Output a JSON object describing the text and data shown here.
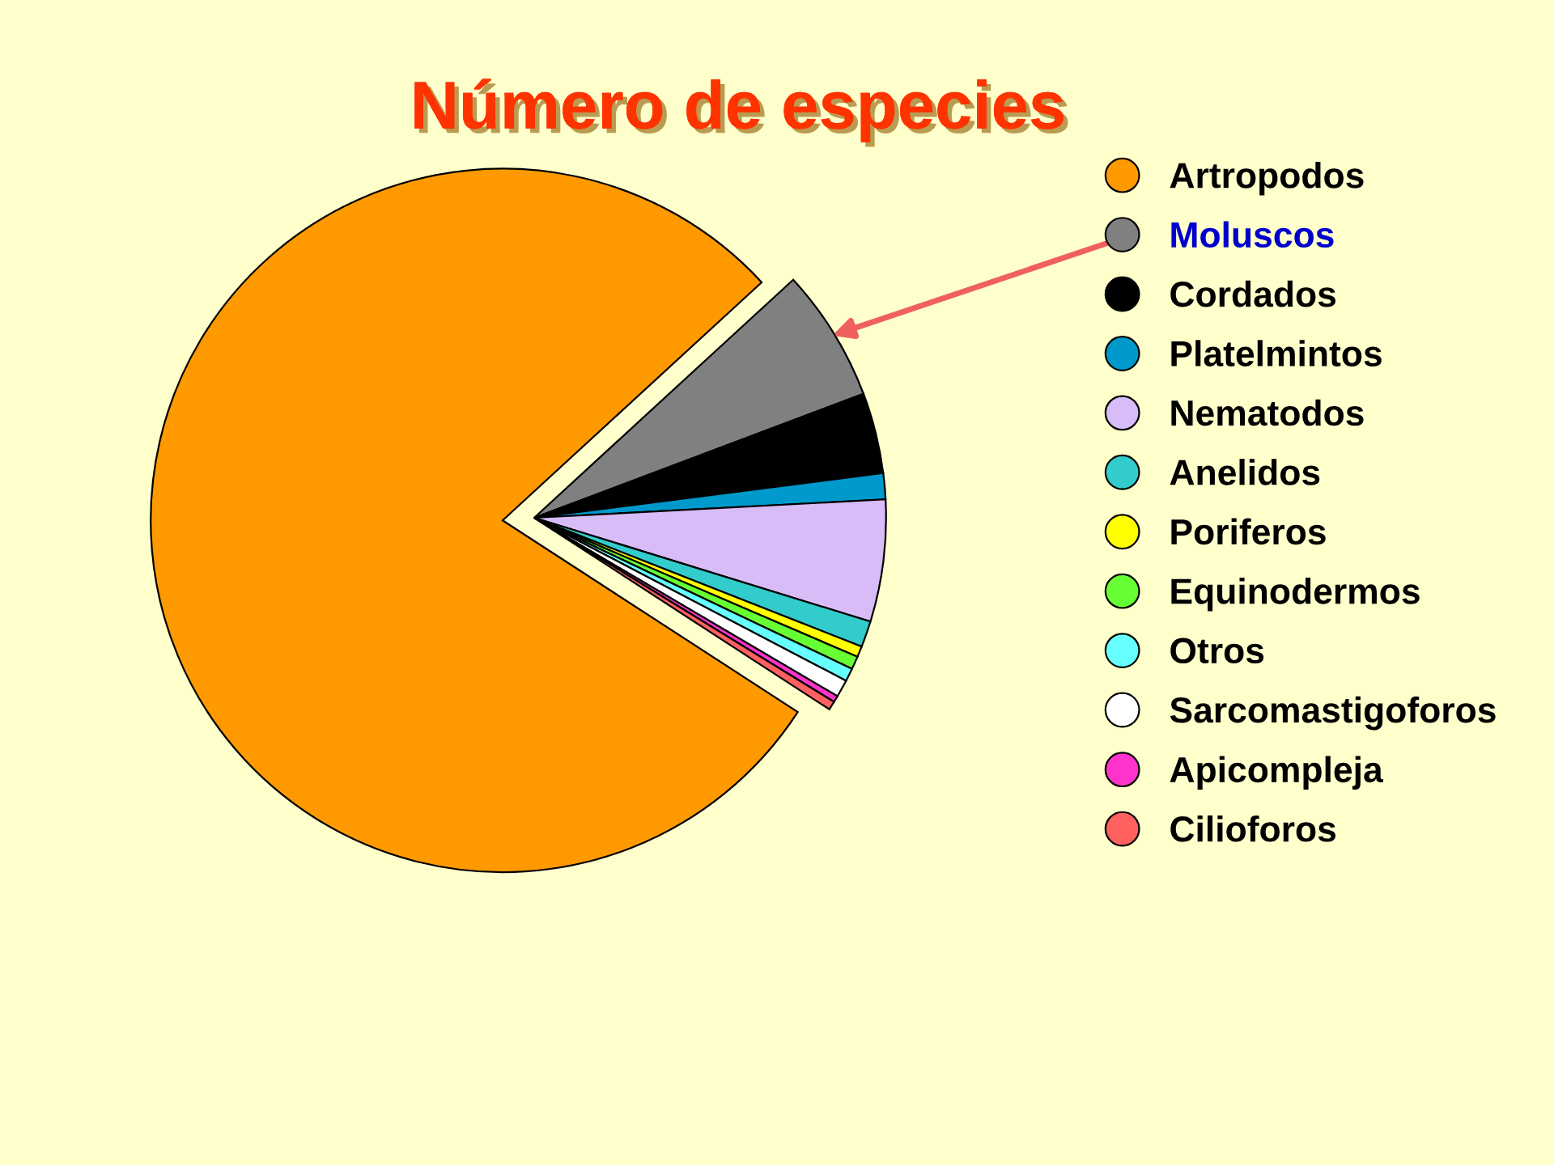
{
  "chart_data": {
    "type": "pie",
    "title": "Número de especies",
    "categories": [
      "Artropodos",
      "Moluscos",
      "Cordados",
      "Platelmintos",
      "Nematodos",
      "Anelidos",
      "Poriferos",
      "Equinodermos",
      "Otros",
      "Sarcomastigoforos",
      "Apicompleja",
      "Cilioforos"
    ],
    "values": [
      79.0,
      6.1,
      3.7,
      1.2,
      5.6,
      1.2,
      0.5,
      0.6,
      0.6,
      0.8,
      0.3,
      0.4
    ],
    "colors": [
      "#ff9900",
      "#808080",
      "#000000",
      "#0099cc",
      "#d8bcf8",
      "#33cccc",
      "#ffff00",
      "#66ff33",
      "#66ffff",
      "#ffffff",
      "#ff33cc",
      "#ff6060"
    ],
    "legend": "right"
  }
}
